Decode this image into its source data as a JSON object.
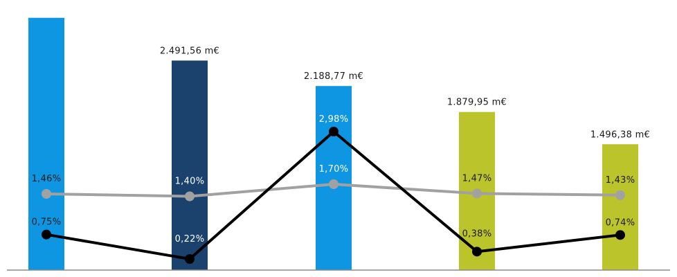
{
  "chart_data": {
    "type": "bar",
    "categories": [
      "",
      "",
      "",
      "",
      ""
    ],
    "series": [
      {
        "kind": "bar",
        "values": [
          3000,
          2491.56,
          2188.77,
          1879.95,
          1496.38
        ],
        "labels": [
          "",
          "2.491,56 m€",
          "2.188,77 m€",
          "1.879,95 m€",
          "1.496,38 m€"
        ],
        "colors": [
          "#0f96e2",
          "#1b416d",
          "#0f96e2",
          "#bcc42c",
          "#bcc42c"
        ]
      },
      {
        "kind": "line",
        "color": "#a1a1a1",
        "values": [
          1.46,
          1.4,
          1.7,
          1.47,
          1.43
        ],
        "labels": [
          "1,46%",
          "1,40%",
          "1,70%",
          "1,47%",
          "1,43%"
        ]
      },
      {
        "kind": "line",
        "color": "#000000",
        "values": [
          0.75,
          0.22,
          2.98,
          0.38,
          0.74
        ],
        "labels": [
          "0,75%",
          "0,22%",
          "2,98%",
          "0,38%",
          "0,74%"
        ]
      }
    ],
    "bar_ylim": [
      0,
      2800
    ],
    "line_ylim": [
      0,
      3.4
    ],
    "grid": false,
    "legend": "none"
  }
}
